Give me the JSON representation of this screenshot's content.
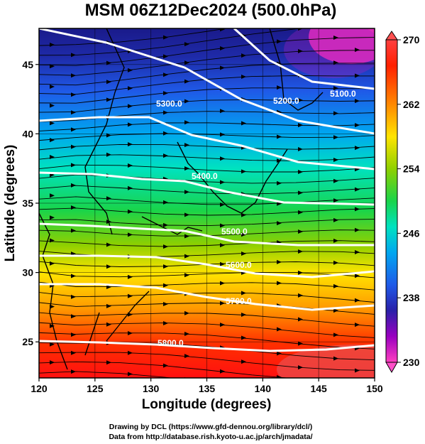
{
  "title": "MSM 06Z12Dec2024 (500.0hPa)",
  "axes": {
    "xlabel": "Longitude (degrees)",
    "ylabel": "Latitude  (degrees)",
    "xticks": [
      "120",
      "125",
      "130",
      "135",
      "140",
      "145",
      "150"
    ],
    "yticks": [
      "25",
      "30",
      "35",
      "40",
      "45"
    ],
    "xlim": [
      120,
      150
    ],
    "ylim": [
      22.4,
      47.6
    ]
  },
  "colorbar": {
    "ticks": [
      "270",
      "262",
      "254",
      "246",
      "238",
      "230"
    ],
    "range": [
      230,
      270
    ],
    "colors": [
      "#ff80c8",
      "#cc00cc",
      "#3a1fb0",
      "#1f4ff0",
      "#00b0f0",
      "#00e0b0",
      "#20d040",
      "#9ad000",
      "#ffe000",
      "#ff9000",
      "#ff2000",
      "#e04040"
    ]
  },
  "contours": {
    "labels": [
      "5100.0",
      "5200.0",
      "5300.0",
      "5400.0",
      "5500.0",
      "5600.0",
      "5700.0",
      "5800.0"
    ],
    "color": "#ffffff"
  },
  "footer": {
    "line1": "Drawing by DCL (https://www.gfd-dennou.org/library/dcl/)",
    "line2": "Data from http://database.rish.kyoto-u.ac.jp/arch/jmadata/"
  }
}
